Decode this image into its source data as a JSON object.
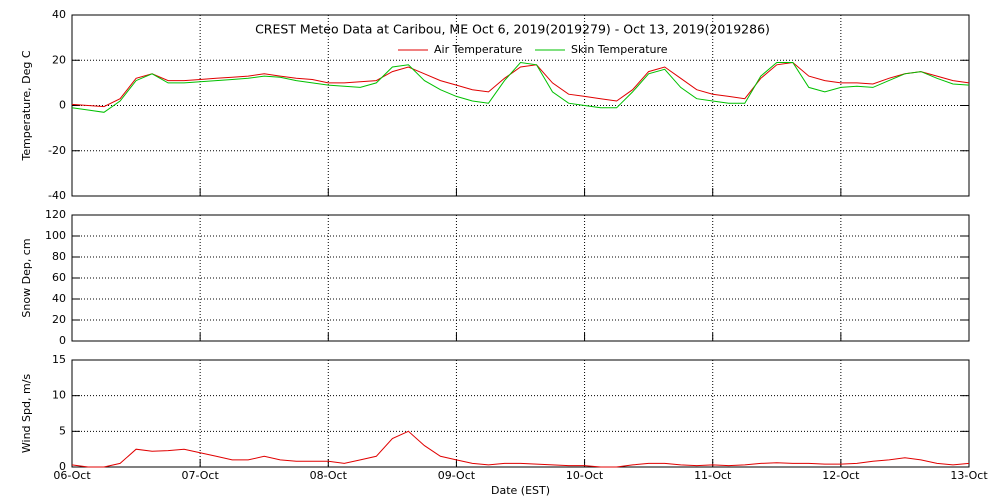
{
  "chart_data": [
    {
      "type": "line",
      "title": "CREST Meteo Data at Caribou, ME   Oct  6, 2019(2019279) - Oct 13, 2019(2019286)",
      "ylabel": "Temperature, Deg C",
      "ylim": [
        -40,
        40
      ],
      "yticks": [
        -40,
        -20,
        0,
        20,
        40
      ],
      "xlim": [
        0,
        7
      ],
      "xticks": [
        0,
        1,
        2,
        3,
        4,
        5,
        6,
        7
      ],
      "grid": true,
      "legend": "top",
      "x": [
        0,
        0.125,
        0.25,
        0.375,
        0.5,
        0.625,
        0.75,
        0.875,
        1,
        1.125,
        1.25,
        1.375,
        1.5,
        1.625,
        1.75,
        1.875,
        2,
        2.125,
        2.25,
        2.375,
        2.5,
        2.625,
        2.75,
        2.875,
        3,
        3.125,
        3.25,
        3.375,
        3.5,
        3.625,
        3.75,
        3.875,
        4,
        4.125,
        4.25,
        4.375,
        4.5,
        4.625,
        4.75,
        4.875,
        5,
        5.125,
        5.25,
        5.375,
        5.5,
        5.625,
        5.75,
        5.875,
        6,
        6.125,
        6.25,
        6.375,
        6.5,
        6.625,
        6.75,
        6.875,
        7
      ],
      "series": [
        {
          "name": "Air Temperature",
          "color": "#e00000",
          "values": [
            0.5,
            0,
            -0.5,
            3,
            12,
            14,
            11,
            11,
            11.5,
            12,
            12.5,
            13,
            14,
            13,
            12,
            11.5,
            10,
            10,
            10.5,
            11,
            15,
            17,
            14,
            11,
            9,
            7,
            6,
            12,
            17,
            18,
            10,
            5,
            4,
            3,
            2,
            7,
            15,
            17,
            12,
            7,
            5,
            4,
            3,
            12,
            18,
            19,
            13,
            11,
            10,
            10,
            9.5,
            12,
            14,
            15,
            13,
            11,
            10
          ]
        },
        {
          "name": "Skin Temperature",
          "color": "#00c000",
          "values": [
            -1,
            -2,
            -3,
            2,
            11,
            14,
            10,
            10,
            10.5,
            11,
            11.5,
            12,
            13,
            12.5,
            11,
            10,
            9,
            8.5,
            8,
            10,
            17,
            18,
            11,
            7,
            4,
            2,
            1,
            11,
            19,
            18,
            6,
            1,
            0,
            -1,
            -1,
            6,
            14,
            16,
            8,
            3,
            2,
            1,
            1,
            13,
            19,
            19,
            8,
            6,
            8,
            8.5,
            8,
            11,
            14,
            15,
            12,
            9.5,
            9
          ]
        }
      ]
    },
    {
      "type": "line",
      "ylabel": "Snow Dep, cm",
      "ylim": [
        0,
        120
      ],
      "yticks": [
        0,
        20,
        40,
        60,
        80,
        100,
        120
      ],
      "xlim": [
        0,
        7
      ],
      "xticks": [
        0,
        1,
        2,
        3,
        4,
        5,
        6,
        7
      ],
      "grid": true
    },
    {
      "type": "line",
      "ylabel": "Wind Spd, m/s",
      "xlabel": "Date (EST)",
      "ylim": [
        0,
        15
      ],
      "yticks": [
        0,
        5,
        10,
        15
      ],
      "xlim": [
        0,
        7
      ],
      "xticks": [
        {
          "value": 0,
          "label": "06-Oct"
        },
        {
          "value": 1,
          "label": "07-Oct"
        },
        {
          "value": 2,
          "label": "08-Oct"
        },
        {
          "value": 3,
          "label": "09-Oct"
        },
        {
          "value": 4,
          "label": "10-Oct"
        },
        {
          "value": 5,
          "label": "11-Oct"
        },
        {
          "value": 6,
          "label": "12-Oct"
        },
        {
          "value": 7,
          "label": "13-Oct"
        }
      ],
      "grid": true,
      "x": [
        0,
        0.125,
        0.25,
        0.375,
        0.5,
        0.625,
        0.75,
        0.875,
        1,
        1.125,
        1.25,
        1.375,
        1.5,
        1.625,
        1.75,
        1.875,
        2,
        2.125,
        2.25,
        2.375,
        2.5,
        2.625,
        2.75,
        2.875,
        3,
        3.125,
        3.25,
        3.375,
        3.5,
        3.625,
        3.75,
        3.875,
        4,
        4.125,
        4.25,
        4.375,
        4.5,
        4.625,
        4.75,
        4.875,
        5,
        5.125,
        5.25,
        5.375,
        5.5,
        5.625,
        5.75,
        5.875,
        6,
        6.125,
        6.25,
        6.375,
        6.5,
        6.625,
        6.75,
        6.875,
        7
      ],
      "series": [
        {
          "name": "Wind Speed",
          "color": "#e00000",
          "values": [
            0.3,
            0,
            0,
            0.5,
            2.5,
            2.2,
            2.3,
            2.5,
            2,
            1.5,
            1,
            1,
            1.5,
            1,
            0.8,
            0.8,
            0.8,
            0.5,
            1,
            1.5,
            4,
            5,
            3,
            1.5,
            1,
            0.5,
            0.3,
            0.5,
            0.5,
            0.4,
            0.3,
            0.2,
            0.2,
            0,
            0,
            0.3,
            0.5,
            0.5,
            0.3,
            0.2,
            0.3,
            0.2,
            0.3,
            0.5,
            0.6,
            0.5,
            0.5,
            0.4,
            0.4,
            0.5,
            0.8,
            1,
            1.3,
            1,
            0.5,
            0.3,
            0.5
          ]
        }
      ]
    }
  ]
}
